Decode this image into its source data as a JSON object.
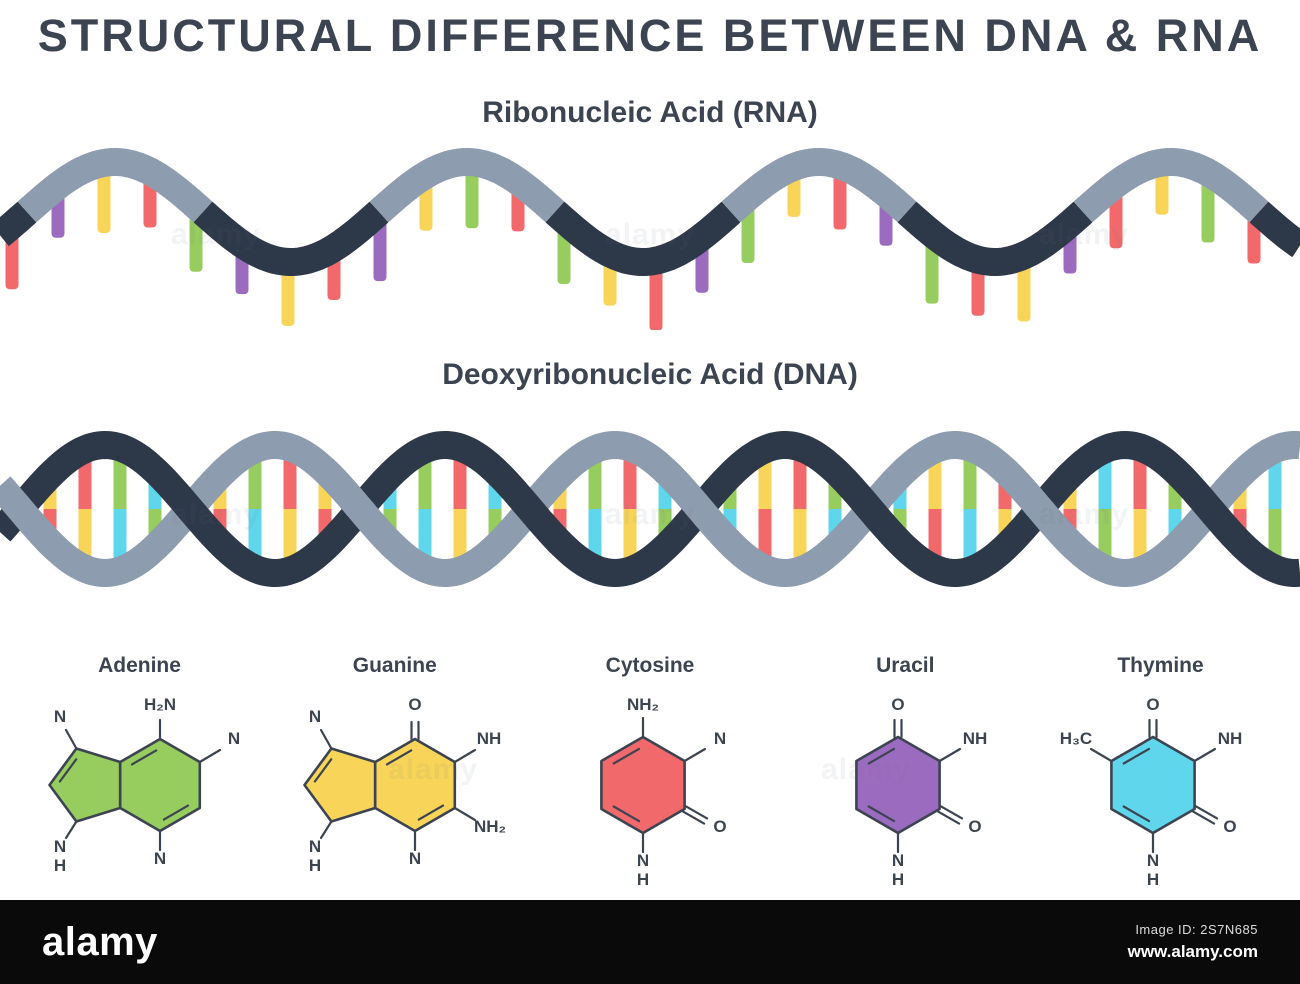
{
  "page": {
    "title": "STRUCTURAL DIFFERENCE BETWEEN DNA & RNA",
    "text_color": "#3d4451",
    "background": "#ffffff"
  },
  "rna": {
    "heading": "Ribonucleic Acid (RNA)",
    "strand_dark": "#2d3848",
    "strand_light": "#8d9cae",
    "base_colors": {
      "A": "#97cc5f",
      "G": "#f8d558",
      "C": "#f2696b",
      "U": "#9b6bc0"
    },
    "sequence": [
      "C",
      "U",
      "G",
      "C",
      "A",
      "U",
      "G",
      "C",
      "U",
      "G",
      "A",
      "C",
      "A",
      "G",
      "C",
      "U",
      "A",
      "G",
      "C",
      "U",
      "A",
      "C",
      "G",
      "U",
      "C",
      "G",
      "A",
      "C"
    ]
  },
  "dna": {
    "heading": "Deoxyribonucleic Acid (DNA)",
    "strand_dark": "#2d3848",
    "strand_light": "#8d9cae",
    "base_colors": {
      "A": "#97cc5f",
      "G": "#f8d558",
      "C": "#f2696b",
      "T": "#5fd6ec"
    },
    "pairs": [
      "GC",
      "CG",
      "AT",
      "TA",
      "GC",
      "AT",
      "CG",
      "GC",
      "TA",
      "AT",
      "CG",
      "TA",
      "GC",
      "AT",
      "CG",
      "TA",
      "AT",
      "GC",
      "CG",
      "AT",
      "TA",
      "GC",
      "AT",
      "CG",
      "GC",
      "TA",
      "CG",
      "AT",
      "GC",
      "TA"
    ]
  },
  "molecules": [
    {
      "name": "Adenine",
      "type": "purine",
      "color": "#97cc5f",
      "labels": {
        "top_left": "N",
        "top": "H₂N",
        "right": "N",
        "bottom": "N",
        "bottom_left_n": "N",
        "bottom_left_h": "H"
      }
    },
    {
      "name": "Guanine",
      "type": "purine",
      "color": "#f8d558",
      "labels": {
        "top_left": "N",
        "top": "O",
        "right": "NH",
        "lower_right": "NH₂",
        "bottom": "N",
        "bottom_left_n": "N",
        "bottom_left_h": "H"
      }
    },
    {
      "name": "Cytosine",
      "type": "pyrimidine",
      "color": "#f2696b",
      "labels": {
        "top": "NH₂",
        "upper_right": "N",
        "lower_right": "O",
        "bottom_n": "N",
        "bottom_h": "H"
      }
    },
    {
      "name": "Uracil",
      "type": "pyrimidine",
      "color": "#9b6bc0",
      "labels": {
        "top": "O",
        "upper_right": "NH",
        "lower_right": "O",
        "bottom_n": "N",
        "bottom_h": "H"
      }
    },
    {
      "name": "Thymine",
      "type": "pyrimidine",
      "color": "#5fd6ec",
      "labels": {
        "top": "O",
        "top_left": "H₃C",
        "upper_right": "NH",
        "lower_right": "O",
        "bottom_n": "N",
        "bottom_h": "H"
      }
    }
  ],
  "footer": {
    "brand": "alamy",
    "image_id": "Image ID: 2S7N685",
    "url": "www.alamy.com",
    "background": "#0a0a0a"
  },
  "watermark": {
    "text": "alamy"
  }
}
